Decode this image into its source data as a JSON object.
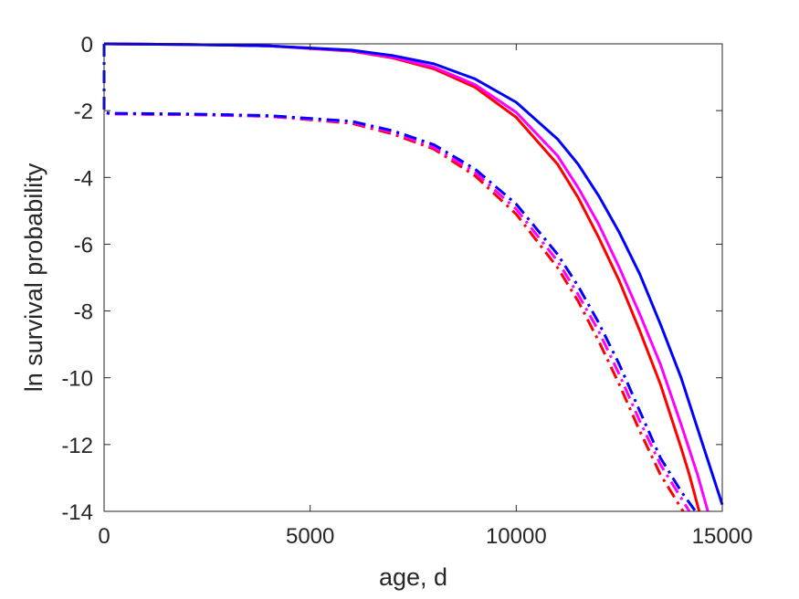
{
  "chart_data": {
    "type": "line",
    "title": "",
    "xlabel": "age, d",
    "ylabel": "ln survival probability",
    "xlim": [
      0,
      15000
    ],
    "ylim": [
      -14,
      0
    ],
    "xticks": [
      0,
      5000,
      10000,
      15000
    ],
    "yticks": [
      0,
      -2,
      -4,
      -6,
      -8,
      -10,
      -12,
      -14
    ],
    "grid": false,
    "legend": "none",
    "series": [
      {
        "color": "#ff0000",
        "style": "solid",
        "x": [
          0,
          2000,
          4000,
          6000,
          7000,
          8000,
          9000,
          10000,
          11000,
          11500,
          12000,
          12500,
          13000,
          13500,
          14000,
          14200,
          14440
        ],
        "y": [
          0,
          -0.02,
          -0.06,
          -0.22,
          -0.42,
          -0.75,
          -1.3,
          -2.2,
          -3.6,
          -4.6,
          -5.8,
          -7.1,
          -8.6,
          -10.2,
          -12.1,
          -12.9,
          -14.0
        ]
      },
      {
        "color": "#ff00ff",
        "style": "solid",
        "x": [
          0,
          2000,
          4000,
          6000,
          7000,
          8000,
          9000,
          10000,
          11000,
          11500,
          12000,
          12500,
          13000,
          13500,
          14000,
          14400,
          14650
        ],
        "y": [
          0,
          -0.02,
          -0.06,
          -0.21,
          -0.4,
          -0.7,
          -1.22,
          -2.05,
          -3.35,
          -4.3,
          -5.4,
          -6.7,
          -8.1,
          -9.6,
          -11.4,
          -12.9,
          -14.0
        ]
      },
      {
        "color": "#0000ff",
        "style": "solid",
        "x": [
          0,
          2000,
          4000,
          6000,
          7000,
          8000,
          9000,
          10000,
          11000,
          11500,
          12000,
          12500,
          13000,
          13500,
          14000,
          14500,
          15000
        ],
        "y": [
          0,
          -0.02,
          -0.06,
          -0.19,
          -0.35,
          -0.6,
          -1.05,
          -1.75,
          -2.85,
          -3.6,
          -4.55,
          -5.65,
          -6.9,
          -8.4,
          -10.0,
          -11.9,
          -13.8
        ]
      },
      {
        "color": "#ff0000",
        "style": "dashdot",
        "x": [
          0,
          0,
          150,
          2000,
          4000,
          6000,
          7000,
          8000,
          9000,
          10000,
          11000,
          11500,
          12000,
          12500,
          13000,
          13500,
          13800,
          14050
        ],
        "y": [
          0,
          -2.05,
          -2.1,
          -2.12,
          -2.17,
          -2.38,
          -2.7,
          -3.15,
          -3.95,
          -5.1,
          -6.7,
          -7.7,
          -8.9,
          -10.2,
          -11.6,
          -12.9,
          -13.5,
          -14.0
        ]
      },
      {
        "color": "#ff00ff",
        "style": "dashdot",
        "x": [
          0,
          0,
          150,
          2000,
          4000,
          6000,
          7000,
          8000,
          9000,
          10000,
          11000,
          11500,
          12000,
          12500,
          13000,
          13500,
          13900,
          14200
        ],
        "y": [
          0,
          -2.05,
          -2.1,
          -2.12,
          -2.17,
          -2.35,
          -2.65,
          -3.1,
          -3.85,
          -4.95,
          -6.5,
          -7.5,
          -8.6,
          -9.9,
          -11.3,
          -12.6,
          -13.4,
          -14.0
        ]
      },
      {
        "color": "#0000ff",
        "style": "dashdot",
        "x": [
          0,
          0,
          150,
          2000,
          4000,
          6000,
          7000,
          8000,
          9000,
          10000,
          11000,
          11500,
          12000,
          12500,
          13000,
          13500,
          14000,
          14350
        ],
        "y": [
          0,
          -2.05,
          -2.08,
          -2.1,
          -2.15,
          -2.32,
          -2.6,
          -3.02,
          -3.75,
          -4.8,
          -6.3,
          -7.25,
          -8.35,
          -9.6,
          -11.0,
          -12.4,
          -13.4,
          -14.0
        ]
      }
    ]
  }
}
